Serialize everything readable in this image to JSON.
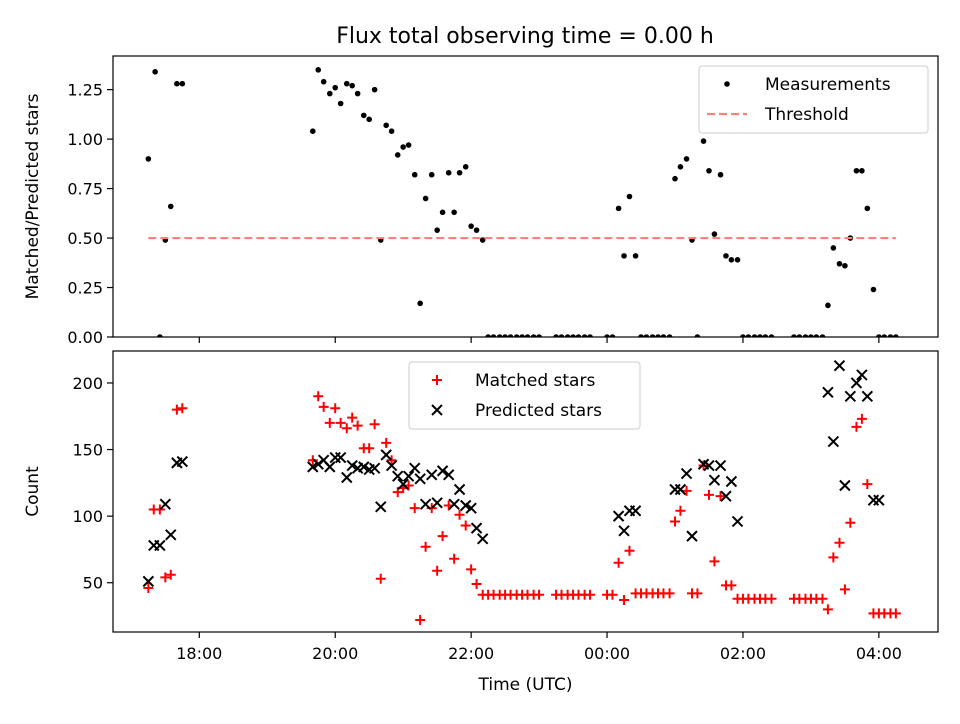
{
  "title": "Flux total observing time = 0.00 h",
  "chart_data": [
    {
      "type": "scatter",
      "panel": "top",
      "ylabel": "Matched/Predicted stars",
      "xlabel": "",
      "x_unit": "hours (UTC, continuing past midnight)",
      "xlim": [
        16.73,
        28.87
      ],
      "ylim": [
        0,
        1.42
      ],
      "yticks": [
        0.0,
        0.25,
        0.5,
        0.75,
        1.0,
        1.25
      ],
      "ytick_labels": [
        "0.00",
        "0.25",
        "0.50",
        "0.75",
        "1.00",
        "1.25"
      ],
      "xticks": [
        18,
        20,
        22,
        24,
        26,
        28
      ],
      "xtick_labels": [
        "",
        "",
        "",
        "",
        "",
        ""
      ],
      "legend": {
        "position": "top-right",
        "entries": [
          "Measurements",
          "Threshold"
        ]
      },
      "series": [
        {
          "name": "Measurements",
          "marker": "dot",
          "color": "#000000",
          "x": [
            17.25,
            17.35,
            17.42,
            17.5,
            17.58,
            17.67,
            17.75,
            19.67,
            19.75,
            19.83,
            19.92,
            20.0,
            20.08,
            20.17,
            20.25,
            20.33,
            20.42,
            20.5,
            20.58,
            20.67,
            20.75,
            20.83,
            20.92,
            21.0,
            21.08,
            21.17,
            21.25,
            21.33,
            21.42,
            21.5,
            21.58,
            21.67,
            21.75,
            21.83,
            21.92,
            22.0,
            22.08,
            22.17,
            22.25,
            22.33,
            22.42,
            22.5,
            22.58,
            22.67,
            22.75,
            22.83,
            22.92,
            23.0,
            23.25,
            23.33,
            23.42,
            23.5,
            23.58,
            23.67,
            23.75,
            24.0,
            24.08,
            24.17,
            24.25,
            24.33,
            24.42,
            24.5,
            24.58,
            24.67,
            24.75,
            24.83,
            24.92,
            25.0,
            25.08,
            25.17,
            25.25,
            25.33,
            25.42,
            25.5,
            25.58,
            25.67,
            25.75,
            25.83,
            25.92,
            26.0,
            26.08,
            26.17,
            26.25,
            26.33,
            26.42,
            26.75,
            26.83,
            26.92,
            27.0,
            27.08,
            27.17,
            27.25,
            27.33,
            27.42,
            27.5,
            27.58,
            27.67,
            27.75,
            27.83,
            27.92,
            28.0,
            28.08,
            28.17,
            28.25
          ],
          "y": [
            0.9,
            1.34,
            0.0,
            0.49,
            0.66,
            1.28,
            1.28,
            1.04,
            1.35,
            1.29,
            1.23,
            1.26,
            1.18,
            1.28,
            1.27,
            1.23,
            1.12,
            1.1,
            1.25,
            0.49,
            1.07,
            1.04,
            0.92,
            0.96,
            0.97,
            0.82,
            0.17,
            0.7,
            0.82,
            0.54,
            0.63,
            0.83,
            0.63,
            0.83,
            0.86,
            0.56,
            0.54,
            0.49,
            0.0,
            0.0,
            0.0,
            0.0,
            0.0,
            0.0,
            0.0,
            0.0,
            0.0,
            0.0,
            0.0,
            0.0,
            0.0,
            0.0,
            0.0,
            0.0,
            0.0,
            0.0,
            0.0,
            0.65,
            0.41,
            0.71,
            0.41,
            0.0,
            0.0,
            0.0,
            0.0,
            0.0,
            0.0,
            0.8,
            0.86,
            0.9,
            0.49,
            0.0,
            0.99,
            0.84,
            0.52,
            0.82,
            0.41,
            0.39,
            0.39,
            0.0,
            0.0,
            0.0,
            0.0,
            0.0,
            0.0,
            0.0,
            0.0,
            0.0,
            0.0,
            0.0,
            0.0,
            0.16,
            0.45,
            0.37,
            0.36,
            0.5,
            0.84,
            0.84,
            0.65,
            0.24,
            0.0,
            0.0,
            0.0,
            0.0
          ]
        },
        {
          "name": "Threshold",
          "style": "dashed",
          "color": "#ff7f7f",
          "x": [
            17.25,
            28.25
          ],
          "y": [
            0.5,
            0.5
          ]
        }
      ]
    },
    {
      "type": "scatter",
      "panel": "bottom",
      "ylabel": "Count",
      "xlabel": "Time (UTC)",
      "x_unit": "hours (UTC, continuing past midnight)",
      "xlim": [
        16.73,
        28.87
      ],
      "ylim": [
        13,
        224
      ],
      "yticks": [
        50,
        100,
        150,
        200
      ],
      "ytick_labels": [
        "50",
        "100",
        "150",
        "200"
      ],
      "xticks": [
        18,
        20,
        22,
        24,
        26,
        28
      ],
      "xtick_labels": [
        "18:00",
        "20:00",
        "22:00",
        "00:00",
        "02:00",
        "04:00"
      ],
      "legend": {
        "position": "top-center",
        "entries": [
          "Matched stars",
          "Predicted stars"
        ]
      },
      "series": [
        {
          "name": "Matched stars",
          "marker": "plus",
          "color": "#ff0000",
          "x": [
            17.25,
            17.33,
            17.42,
            17.5,
            17.58,
            17.67,
            17.75,
            19.67,
            19.75,
            19.83,
            19.92,
            20.0,
            20.08,
            20.17,
            20.25,
            20.33,
            20.42,
            20.5,
            20.58,
            20.67,
            20.75,
            20.83,
            20.92,
            21.0,
            21.08,
            21.17,
            21.25,
            21.33,
            21.42,
            21.5,
            21.58,
            21.67,
            21.75,
            21.83,
            21.92,
            22.0,
            22.08,
            22.17,
            22.25,
            22.33,
            22.42,
            22.5,
            22.58,
            22.67,
            22.75,
            22.83,
            22.92,
            23.0,
            23.25,
            23.33,
            23.42,
            23.5,
            23.58,
            23.67,
            23.75,
            24.0,
            24.08,
            24.17,
            24.25,
            24.33,
            24.42,
            24.5,
            24.58,
            24.67,
            24.75,
            24.83,
            24.92,
            25.0,
            25.08,
            25.17,
            25.25,
            25.33,
            25.42,
            25.5,
            25.58,
            25.67,
            25.75,
            25.83,
            25.92,
            26.0,
            26.08,
            26.17,
            26.25,
            26.33,
            26.42,
            26.75,
            26.83,
            26.92,
            27.0,
            27.08,
            27.17,
            27.25,
            27.33,
            27.42,
            27.5,
            27.58,
            27.67,
            27.75,
            27.83,
            27.92,
            28.0,
            28.08,
            28.17,
            28.25
          ],
          "y": [
            46,
            105,
            105,
            54,
            56,
            180,
            181,
            142,
            190,
            182,
            170,
            181,
            170,
            166,
            174,
            168,
            151,
            151,
            169,
            53,
            155,
            142,
            118,
            121,
            123,
            106,
            22,
            77,
            106,
            59,
            85,
            108,
            68,
            101,
            93,
            60,
            49,
            41,
            41,
            41,
            41,
            41,
            41,
            41,
            41,
            41,
            41,
            41,
            41,
            41,
            41,
            41,
            41,
            41,
            41,
            41,
            41,
            65,
            37,
            74,
            42,
            42,
            42,
            42,
            42,
            42,
            42,
            96,
            104,
            119,
            42,
            42,
            138,
            116,
            66,
            115,
            48,
            48,
            38,
            38,
            38,
            38,
            38,
            38,
            38,
            38,
            38,
            38,
            38,
            38,
            38,
            30,
            69,
            80,
            45,
            95,
            167,
            173,
            124,
            27,
            27,
            27,
            27,
            27
          ]
        },
        {
          "name": "Predicted stars",
          "marker": "x",
          "color": "#000000",
          "x": [
            17.25,
            17.33,
            17.42,
            17.5,
            17.58,
            17.67,
            17.75,
            19.67,
            19.75,
            19.83,
            19.92,
            20.0,
            20.08,
            20.17,
            20.25,
            20.33,
            20.42,
            20.5,
            20.58,
            20.67,
            20.75,
            20.83,
            20.92,
            21.0,
            21.08,
            21.17,
            21.25,
            21.33,
            21.42,
            21.5,
            21.58,
            21.67,
            21.75,
            21.83,
            21.92,
            22.0,
            22.08,
            22.17,
            24.17,
            24.25,
            24.33,
            24.42,
            25.0,
            25.08,
            25.17,
            25.25,
            25.42,
            25.5,
            25.58,
            25.67,
            25.75,
            25.83,
            25.92,
            27.25,
            27.33,
            27.42,
            27.5,
            27.58,
            27.67,
            27.75,
            27.83,
            27.92,
            28.0
          ],
          "y": [
            51,
            78,
            78,
            109,
            86,
            140,
            141,
            137,
            139,
            142,
            137,
            144,
            144,
            129,
            138,
            136,
            137,
            135,
            136,
            107,
            146,
            138,
            130,
            124,
            130,
            136,
            128,
            109,
            131,
            110,
            134,
            131,
            109,
            120,
            108,
            106,
            91,
            83,
            100,
            89,
            104,
            104,
            120,
            120,
            132,
            85,
            139,
            138,
            127,
            138,
            115,
            126,
            96,
            193,
            156,
            213,
            123,
            190,
            200,
            206,
            190,
            112,
            112
          ]
        }
      ]
    }
  ]
}
